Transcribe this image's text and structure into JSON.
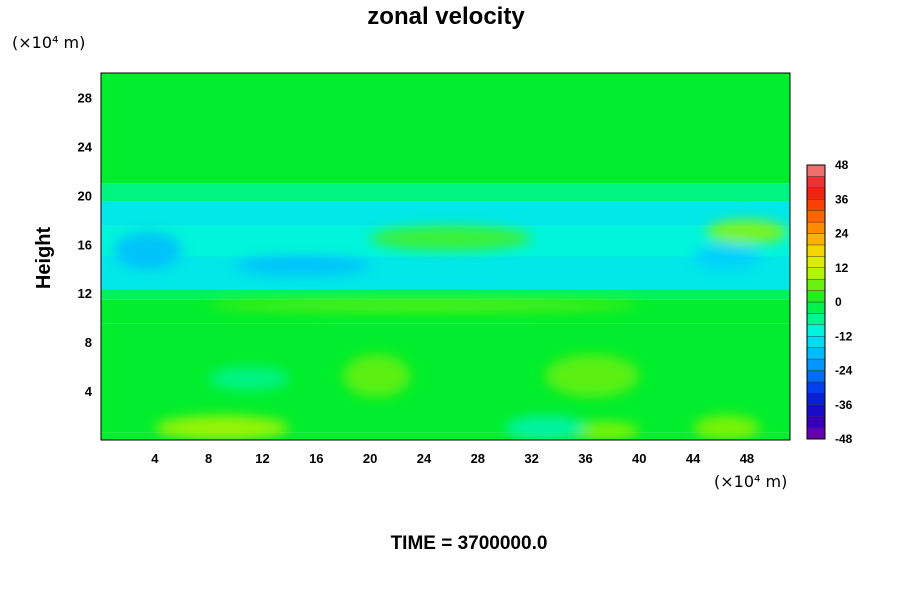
{
  "chart_data": {
    "type": "heatmap",
    "title": "zonal velocity",
    "xlabel": "",
    "ylabel": "Height",
    "x_unit": "(×10⁴ m)",
    "y_unit": "(×10⁴ m)",
    "xlim": [
      0,
      51.2
    ],
    "ylim": [
      0,
      30
    ],
    "xticks": [
      4,
      8,
      12,
      16,
      20,
      24,
      28,
      32,
      36,
      40,
      44,
      48
    ],
    "yticks": [
      4,
      8,
      12,
      16,
      20,
      24,
      28
    ],
    "colorbar": {
      "min": -48,
      "max": 48,
      "step": 4,
      "ticks": [
        48,
        36,
        24,
        12,
        0,
        -12,
        -24,
        -36,
        -48
      ]
    },
    "bands": [
      {
        "y": [
          0,
          0.6
        ],
        "value": 0
      },
      {
        "y": [
          0.6,
          9.5
        ],
        "value": 0
      },
      {
        "y": [
          9.5,
          11.5
        ],
        "value": 0
      },
      {
        "y": [
          11.5,
          12.3
        ],
        "value": -3
      },
      {
        "y": [
          12.3,
          15
        ],
        "value": -12
      },
      {
        "y": [
          15,
          17.5
        ],
        "value": -10
      },
      {
        "y": [
          17.5,
          19.5
        ],
        "value": -12
      },
      {
        "y": [
          19.5,
          21
        ],
        "value": -5
      },
      {
        "y": [
          21,
          30
        ],
        "value": 0
      }
    ],
    "features": [
      {
        "x": [
          4,
          14
        ],
        "y": [
          0,
          2
        ],
        "value": 10
      },
      {
        "x": [
          35,
          40
        ],
        "y": [
          0,
          1.5
        ],
        "value": 8
      },
      {
        "x": [
          44,
          49
        ],
        "y": [
          0,
          2
        ],
        "value": 8
      },
      {
        "x": [
          18,
          23
        ],
        "y": [
          3.5,
          7
        ],
        "value": 6
      },
      {
        "x": [
          33,
          40
        ],
        "y": [
          3.5,
          7
        ],
        "value": 6
      },
      {
        "x": [
          30,
          36
        ],
        "y": [
          0,
          2
        ],
        "value": -8
      },
      {
        "x": [
          8,
          14
        ],
        "y": [
          4,
          6
        ],
        "value": -6
      },
      {
        "x": [
          1,
          6
        ],
        "y": [
          14,
          17
        ],
        "value": -18
      },
      {
        "x": [
          10,
          20
        ],
        "y": [
          13.5,
          15
        ],
        "value": -18
      },
      {
        "x": [
          44,
          49
        ],
        "y": [
          14,
          16
        ],
        "value": -16
      },
      {
        "x": [
          20,
          32
        ],
        "y": [
          15.5,
          17.5
        ],
        "value": 4
      },
      {
        "x": [
          45,
          51
        ],
        "y": [
          16,
          18
        ],
        "value": 8
      },
      {
        "x": [
          8,
          40
        ],
        "y": [
          10.5,
          11.5
        ],
        "value": 6
      }
    ]
  },
  "footer": {
    "time_label": "TIME = 3700000.0"
  },
  "colors": {
    "background": "#ffffff",
    "frame": "#000000"
  }
}
